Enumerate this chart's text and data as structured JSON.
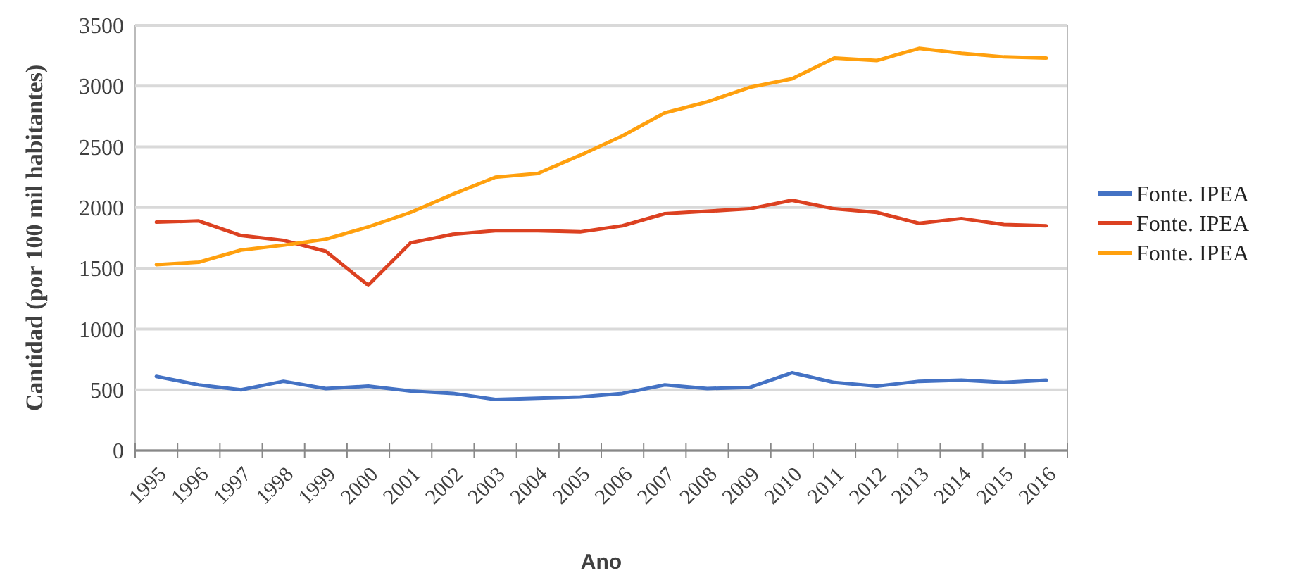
{
  "chart_data": {
    "type": "line",
    "xlabel": "Ano",
    "ylabel": "Cantidad (por 100 mil habitantes)",
    "categories": [
      "1995",
      "1996",
      "1997",
      "1998",
      "1999",
      "2000",
      "2001",
      "2002",
      "2003",
      "2004",
      "2005",
      "2006",
      "2007",
      "2008",
      "2009",
      "2010",
      "2011",
      "2012",
      "2013",
      "2014",
      "2015",
      "2016"
    ],
    "series": [
      {
        "name": "Fonte. IPEA",
        "color": "#4472c4",
        "values": [
          610,
          540,
          500,
          570,
          510,
          530,
          490,
          470,
          420,
          430,
          440,
          470,
          540,
          510,
          520,
          640,
          560,
          530,
          570,
          580,
          560,
          580
        ]
      },
      {
        "name": "Fonte. IPEA",
        "color": "#dc4121",
        "values": [
          1880,
          1890,
          1770,
          1730,
          1640,
          1360,
          1710,
          1780,
          1810,
          1810,
          1800,
          1850,
          1950,
          1970,
          1990,
          2060,
          1990,
          1960,
          1870,
          1910,
          1860,
          1850
        ]
      },
      {
        "name": "Fonte. IPEA",
        "color": "#ffa00e",
        "values": [
          1530,
          1550,
          1650,
          1690,
          1740,
          1840,
          1960,
          2110,
          2250,
          2280,
          2430,
          2590,
          2780,
          2870,
          2990,
          3060,
          3230,
          3210,
          3310,
          3270,
          3240,
          3230
        ]
      }
    ],
    "ylim": [
      0,
      3500
    ],
    "yticks": [
      0,
      500,
      1000,
      1500,
      2000,
      2500,
      3000,
      3500
    ],
    "grid": "y",
    "legend": "right",
    "marker": "none",
    "line_style": "solid"
  }
}
